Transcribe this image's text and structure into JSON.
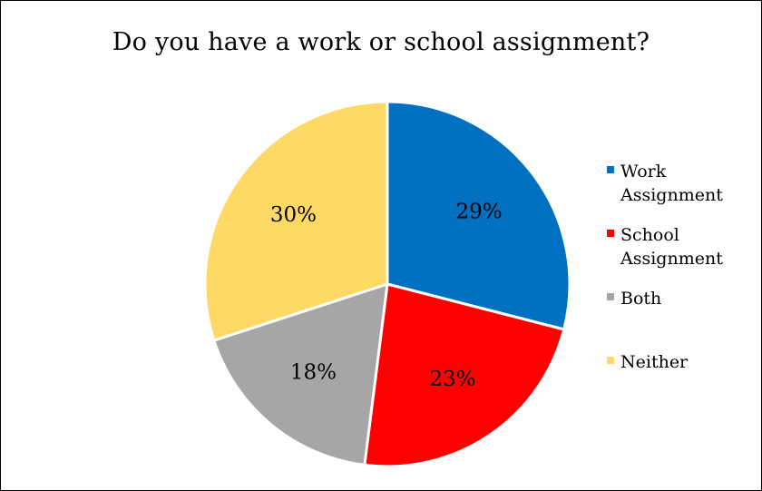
{
  "chart_data": {
    "type": "pie",
    "title": "Do you have a work or school assignment?",
    "slices": [
      {
        "label": "Work Assignment",
        "legend_lines": [
          "Work",
          "Assignment"
        ],
        "value": 29,
        "display": "29%",
        "color": "#0070C0"
      },
      {
        "label": "School Assignment",
        "legend_lines": [
          "School",
          "Assignment"
        ],
        "value": 23,
        "display": "23%",
        "color": "#FF0000"
      },
      {
        "label": "Both",
        "legend_lines": [
          "Both"
        ],
        "value": 18,
        "display": "18%",
        "color": "#A6A6A6"
      },
      {
        "label": "Neither",
        "legend_lines": [
          "Neither"
        ],
        "value": 30,
        "display": "30%",
        "color": "#FFD966"
      }
    ],
    "legend_position": "right",
    "start_angle": "12 o'clock",
    "direction": "clockwise"
  }
}
